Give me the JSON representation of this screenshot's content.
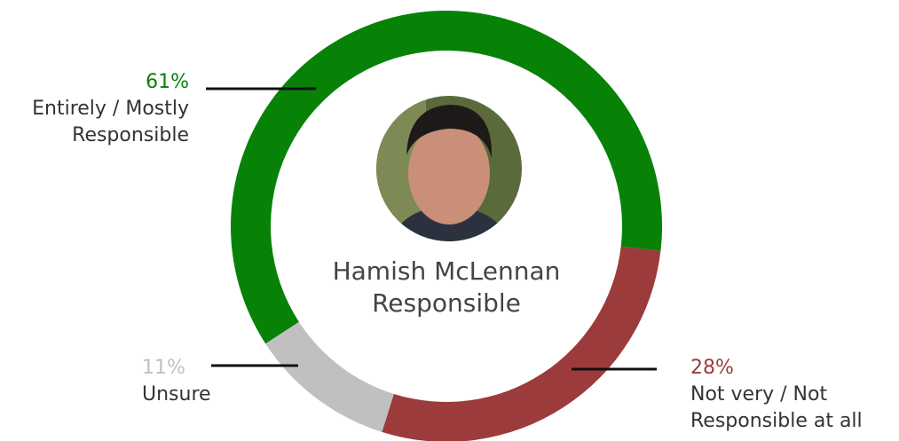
{
  "chart_data": {
    "type": "donut",
    "center_label": "Hamish McLennan Responsible",
    "categories": [
      "Entirely / Mostly Responsible",
      "Not very / Not Responsible at all",
      "Unsure"
    ],
    "values": [
      61,
      28,
      11
    ],
    "value_labels": [
      "61%",
      "28%",
      "11%"
    ],
    "colors": [
      "#078207",
      "#9b3b3b",
      "#c0c0c0"
    ]
  }
}
